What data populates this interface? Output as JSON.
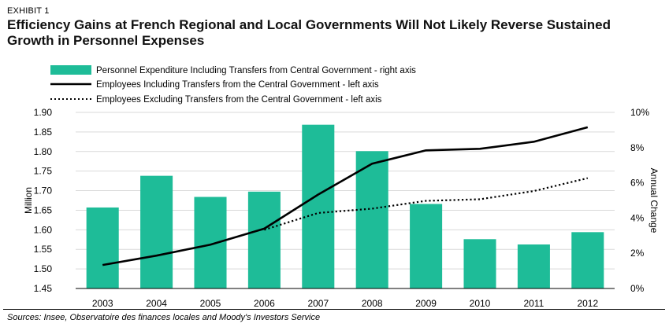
{
  "exhibit": "EXHIBIT 1",
  "title": "Efficiency Gains at French Regional and Local Governments Will Not Likely Reverse Sustained Growth in Personnel Expenses",
  "source": "Sources: Insee, Observatoire des finances locales and Moody's Investors Service",
  "colors": {
    "bars": "#1ebc98",
    "line": "#000000",
    "grid": "#d9d9d9"
  },
  "chart_data": {
    "type": "bar+line",
    "categories": [
      "2003",
      "2004",
      "2005",
      "2006",
      "2007",
      "2008",
      "2009",
      "2010",
      "2011",
      "2012"
    ],
    "series": [
      {
        "name": "Personnel Expenditure Including Transfers  from Central  Government  - right axis",
        "type": "bar",
        "axis": "right",
        "values": [
          4.6,
          6.4,
          5.2,
          5.5,
          9.3,
          7.8,
          4.8,
          2.8,
          2.5,
          3.2
        ]
      },
      {
        "name": "Employees Including Transfers  from the Central Government  - left axis",
        "type": "line",
        "style": "solid",
        "axis": "left",
        "values": [
          1.51,
          1.534,
          1.562,
          1.603,
          1.69,
          1.769,
          1.803,
          1.807,
          1.825,
          1.862
        ]
      },
      {
        "name": "Employees Excluding Transfers  from the Central  Government  - left axis",
        "type": "line",
        "style": "dotted",
        "axis": "left",
        "values": [
          null,
          null,
          null,
          1.6,
          1.643,
          1.654,
          1.674,
          1.678,
          1.699,
          1.732
        ]
      }
    ],
    "left_axis": {
      "label": "Million",
      "min": 1.45,
      "max": 1.9,
      "step": 0.05,
      "ticks": [
        "1.45",
        "1.50",
        "1.55",
        "1.60",
        "1.65",
        "1.70",
        "1.75",
        "1.80",
        "1.85",
        "1.90"
      ]
    },
    "right_axis": {
      "label": "Annual Change",
      "min": 0,
      "max": 10,
      "step": 2,
      "ticks": [
        "0%",
        "2%",
        "4%",
        "6%",
        "8%",
        "10%"
      ]
    },
    "legend_position": "top-left",
    "grid": true
  }
}
